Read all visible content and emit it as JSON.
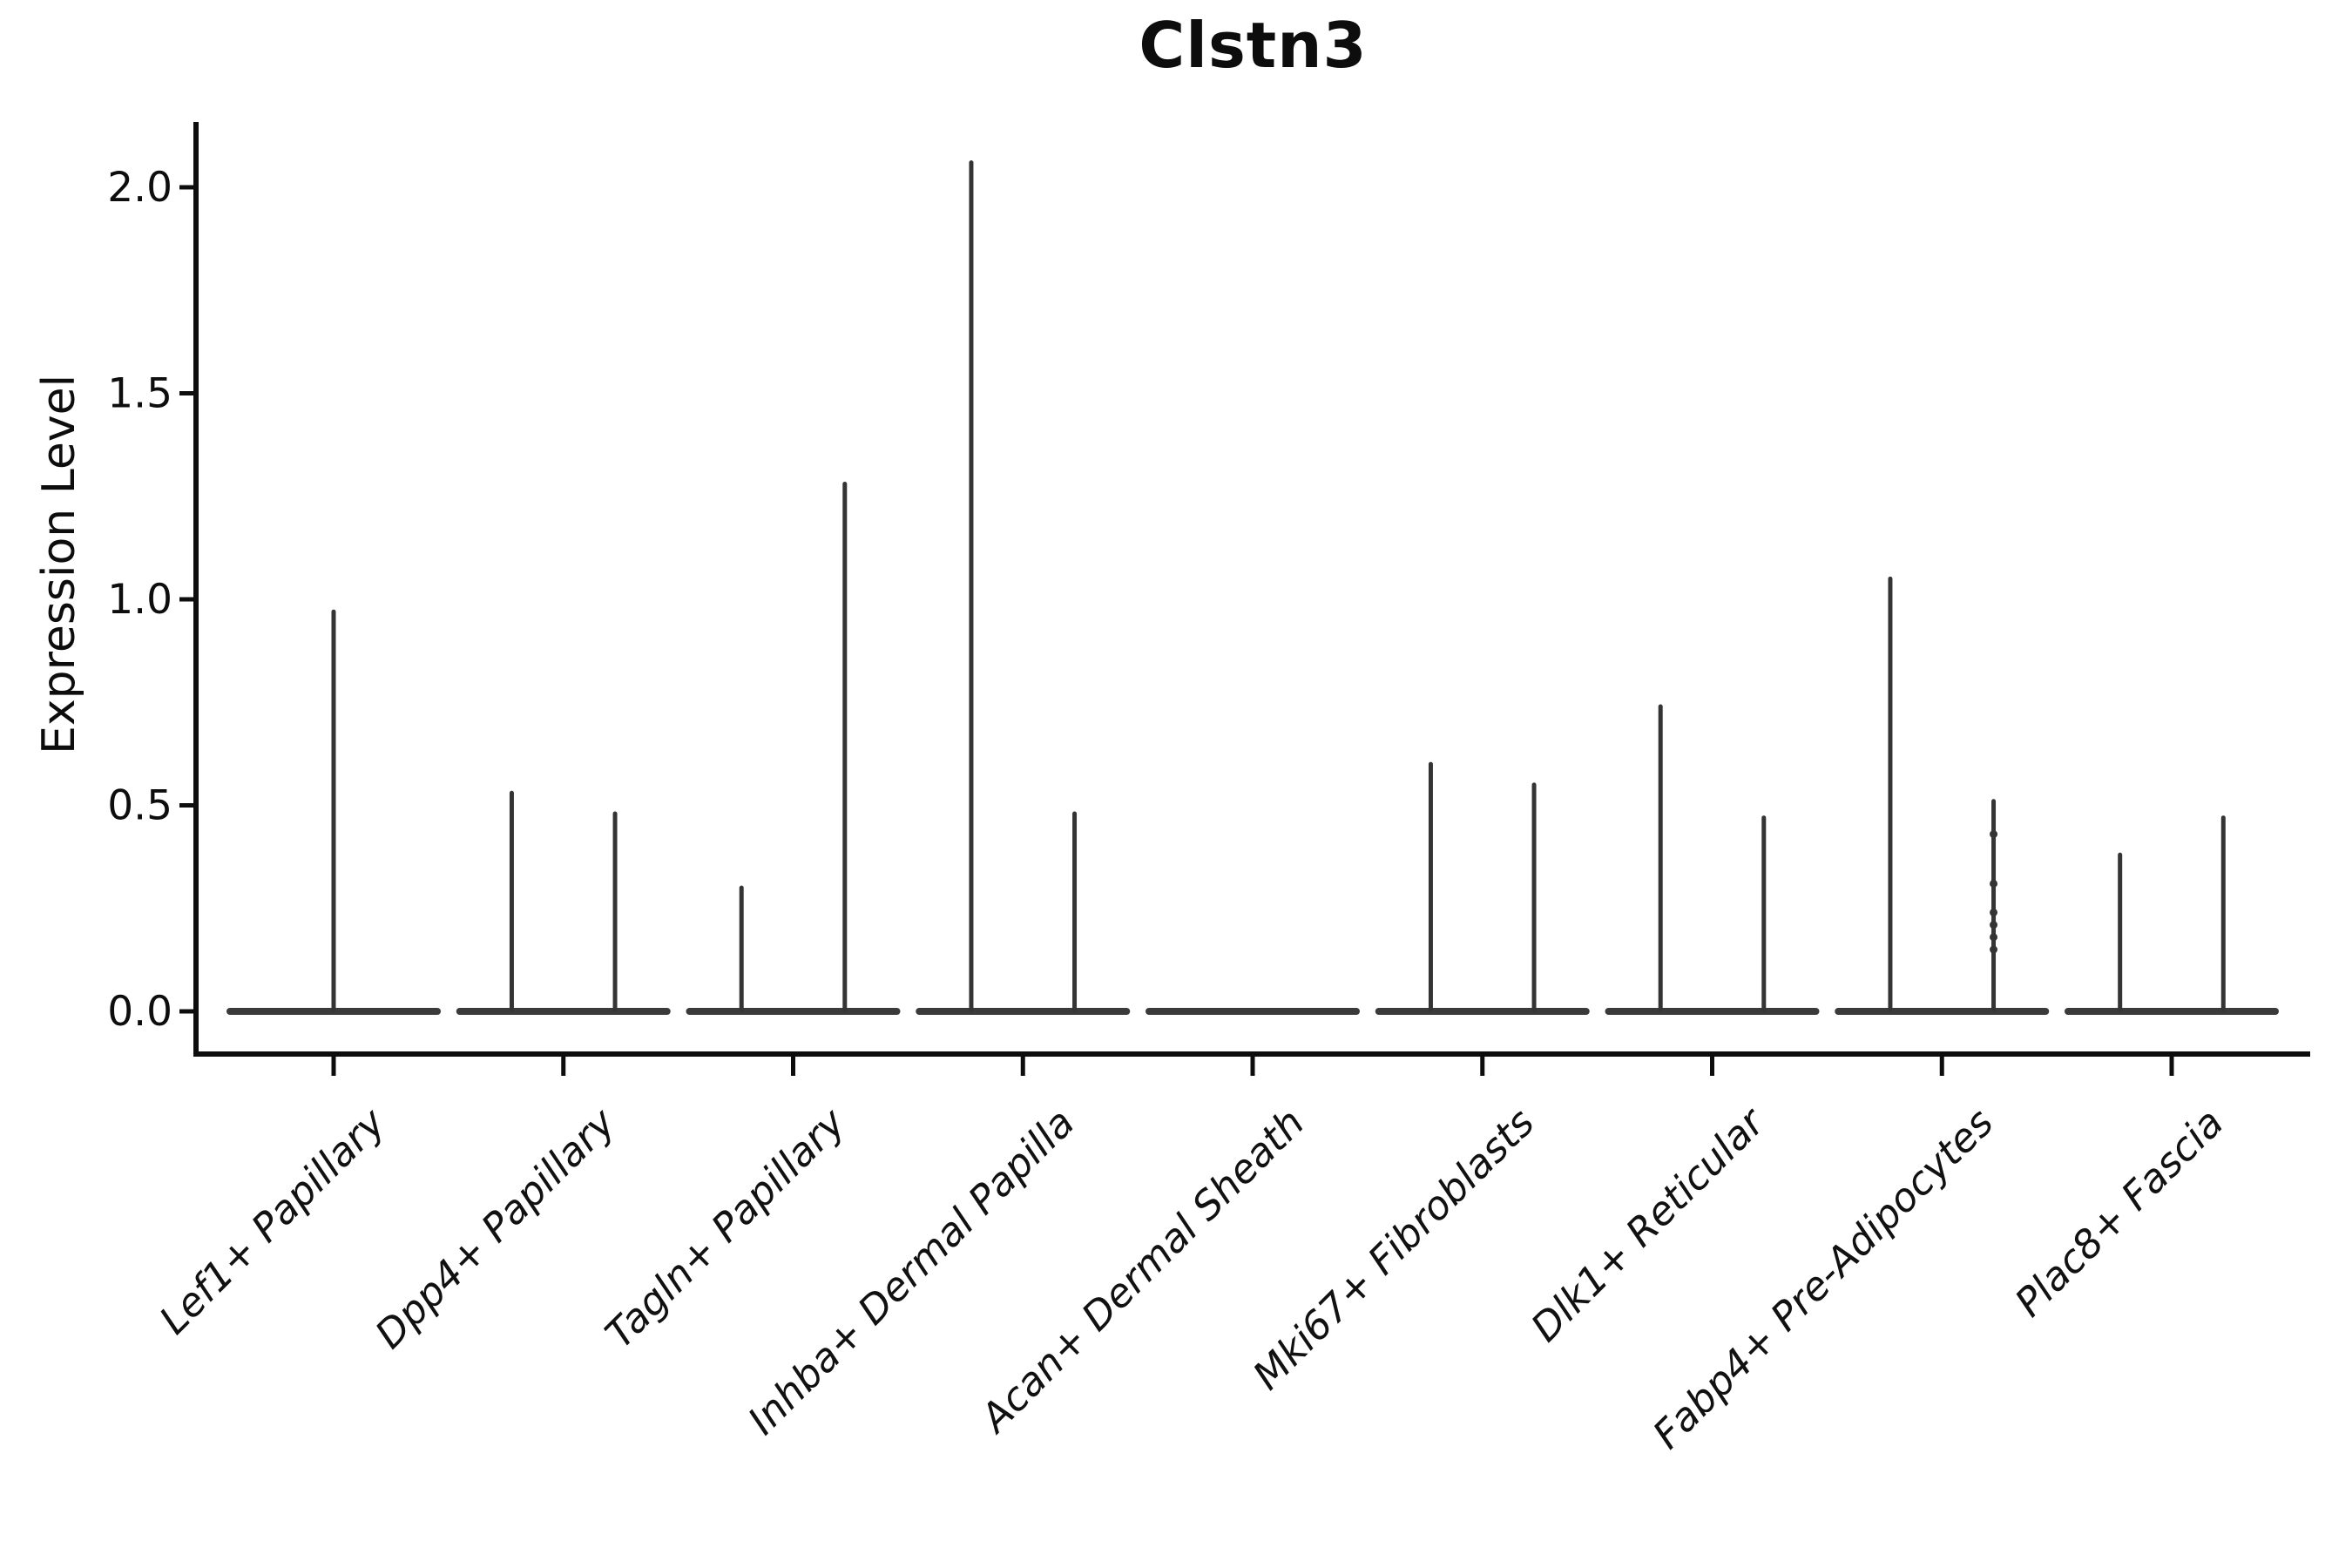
{
  "chart_data": {
    "type": "violin",
    "title": "Clstn3",
    "ylabel": "Expression Level",
    "xlabel": "",
    "ylim": [
      -0.1,
      2.15
    ],
    "yticks": [
      0.0,
      0.5,
      1.0,
      1.5,
      2.0
    ],
    "ytick_labels": [
      "0.0",
      "0.5",
      "1.0",
      "1.5",
      "2.0"
    ],
    "grid": false,
    "legend": "none",
    "x_tick_label_angle": 45,
    "categories": [
      "Lef1+ Papillary",
      "Dpp4+ Papillary",
      "Tagln+ Papillary",
      "Inhba+ Dermal Papilla",
      "Acan+ Dermal Sheath",
      "Mki67+ Fibroblasts",
      "Dlk1+ Reticular",
      "Fabp4+ Pre-Adipocytes",
      "Plac8+ Fascia"
    ],
    "violins": [
      {
        "category": "Lef1+ Papillary",
        "zero_bar": true,
        "spikes": [
          {
            "position": "center",
            "max": 0.97
          }
        ]
      },
      {
        "category": "Dpp4+ Papillary",
        "zero_bar": true,
        "spikes": [
          {
            "position": "left",
            "max": 0.53
          },
          {
            "position": "right",
            "max": 0.48
          }
        ]
      },
      {
        "category": "Tagln+ Papillary",
        "zero_bar": true,
        "spikes": [
          {
            "position": "left",
            "max": 0.3
          },
          {
            "position": "right",
            "max": 1.28
          }
        ]
      },
      {
        "category": "Inhba+ Dermal Papilla",
        "zero_bar": true,
        "spikes": [
          {
            "position": "left",
            "max": 2.06
          },
          {
            "position": "right",
            "max": 0.48
          }
        ]
      },
      {
        "category": "Acan+ Dermal Sheath",
        "zero_bar": true,
        "spikes": []
      },
      {
        "category": "Mki67+ Fibroblasts",
        "zero_bar": true,
        "spikes": [
          {
            "position": "left",
            "max": 0.6
          },
          {
            "position": "right",
            "max": 0.55
          }
        ]
      },
      {
        "category": "Dlk1+ Reticular",
        "zero_bar": true,
        "spikes": [
          {
            "position": "left",
            "max": 0.74
          },
          {
            "position": "right",
            "max": 0.47
          }
        ]
      },
      {
        "category": "Fabp4+ Pre-Adipocytes",
        "zero_bar": true,
        "spikes": [
          {
            "position": "left",
            "max": 1.05
          },
          {
            "position": "right",
            "max": 0.51,
            "points": [
              0.43,
              0.31,
              0.24,
              0.21,
              0.18,
              0.15
            ]
          }
        ]
      },
      {
        "category": "Plac8+ Fascia",
        "zero_bar": true,
        "spikes": [
          {
            "position": "left",
            "max": 0.38
          },
          {
            "position": "right",
            "max": 0.47
          }
        ]
      }
    ],
    "colors": {
      "axis": "#0d0d0d",
      "violin_stroke": "#343434",
      "background": "#ffffff"
    }
  }
}
